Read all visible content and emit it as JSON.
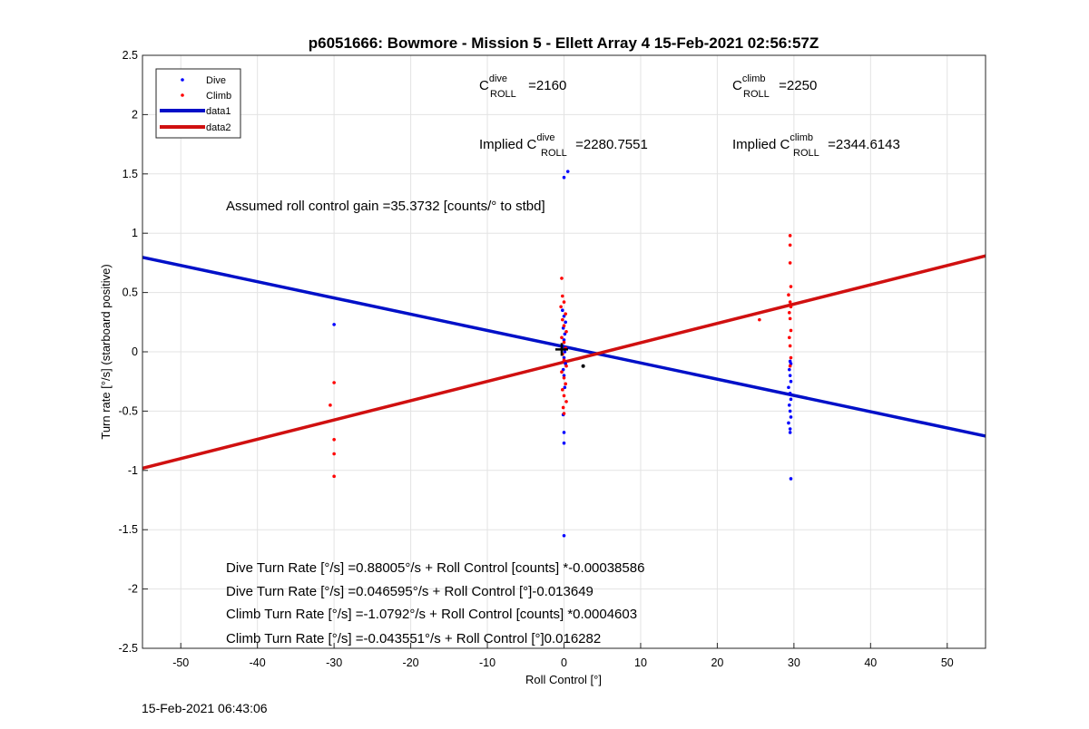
{
  "chart_data": {
    "type": "scatter",
    "title": "p6051666: Bowmore - Mission 5 - Ellett Array 4 15-Feb-2021 02:56:57Z",
    "xlabel": "Roll Control [°]",
    "ylabel": "Turn rate [°/s] (starboard positive)",
    "xlim": [
      -55,
      55
    ],
    "ylim": [
      -2.5,
      2.5
    ],
    "xticks": [
      -50,
      -40,
      -30,
      -20,
      -10,
      0,
      10,
      20,
      30,
      40,
      50
    ],
    "yticks": [
      -2.5,
      -2,
      -1.5,
      -1,
      -0.5,
      0,
      0.5,
      1,
      1.5,
      2,
      2.5
    ],
    "grid": true,
    "legend_placement": "top-left",
    "colors": {
      "dive": "#0000ff",
      "climb": "#ff0000",
      "data1": "#0010c8",
      "data2": "#d01010"
    },
    "series": [
      {
        "name": "Dive",
        "marker": "dot",
        "points": [
          [
            -30,
            0.23
          ],
          [
            0,
            1.47
          ],
          [
            0.5,
            1.52
          ],
          [
            -0.2,
            0.35
          ],
          [
            0,
            0.3
          ],
          [
            0.2,
            0.25
          ],
          [
            -0.1,
            0.2
          ],
          [
            0.1,
            0.15
          ],
          [
            0,
            0.1
          ],
          [
            -0.2,
            0.05
          ],
          [
            0.1,
            0.0
          ],
          [
            0,
            -0.05
          ],
          [
            0.2,
            -0.1
          ],
          [
            -0.1,
            -0.15
          ],
          [
            0,
            -0.2
          ],
          [
            0.1,
            -0.3
          ],
          [
            -0.1,
            -0.53
          ],
          [
            0,
            -0.68
          ],
          [
            0,
            -0.77
          ],
          [
            0,
            -1.55
          ],
          [
            2.5,
            -0.12
          ],
          [
            29.5,
            -0.08
          ],
          [
            29.6,
            -0.1
          ],
          [
            29.4,
            -0.15
          ],
          [
            29.5,
            -0.2
          ],
          [
            29.6,
            -0.25
          ],
          [
            29.3,
            -0.3
          ],
          [
            29.5,
            -0.35
          ],
          [
            29.6,
            -0.4
          ],
          [
            29.4,
            -0.45
          ],
          [
            29.5,
            -0.5
          ],
          [
            29.6,
            -0.55
          ],
          [
            29.3,
            -0.6
          ],
          [
            29.5,
            -0.65
          ],
          [
            29.5,
            -0.68
          ],
          [
            29.6,
            -1.07
          ]
        ]
      },
      {
        "name": "Climb",
        "marker": "dot",
        "points": [
          [
            -30,
            -0.26
          ],
          [
            -30.5,
            -0.45
          ],
          [
            -30,
            -0.74
          ],
          [
            -30,
            -0.86
          ],
          [
            -30,
            -1.05
          ],
          [
            -0.3,
            0.62
          ],
          [
            -0.2,
            0.47
          ],
          [
            0,
            0.42
          ],
          [
            -0.4,
            0.38
          ],
          [
            0.2,
            0.32
          ],
          [
            -0.2,
            0.27
          ],
          [
            0,
            0.22
          ],
          [
            0.3,
            0.17
          ],
          [
            -0.3,
            0.12
          ],
          [
            0,
            0.08
          ],
          [
            0.2,
            0.03
          ],
          [
            -0.2,
            -0.02
          ],
          [
            0,
            -0.07
          ],
          [
            0.3,
            -0.12
          ],
          [
            -0.3,
            -0.17
          ],
          [
            0,
            -0.22
          ],
          [
            0.2,
            -0.27
          ],
          [
            -0.2,
            -0.32
          ],
          [
            0,
            -0.37
          ],
          [
            0.3,
            -0.42
          ],
          [
            -0.1,
            -0.47
          ],
          [
            0,
            -0.52
          ],
          [
            25.5,
            0.27
          ],
          [
            29.5,
            0.98
          ],
          [
            29.5,
            0.9
          ],
          [
            29.5,
            0.75
          ],
          [
            29.6,
            0.55
          ],
          [
            29.3,
            0.48
          ],
          [
            29.5,
            0.42
          ],
          [
            29.6,
            0.38
          ],
          [
            29.4,
            0.33
          ],
          [
            29.5,
            0.28
          ],
          [
            29.6,
            0.18
          ],
          [
            29.4,
            0.12
          ],
          [
            29.5,
            0.05
          ],
          [
            29.6,
            -0.05
          ],
          [
            29.5,
            -0.12
          ]
        ]
      },
      {
        "name": "data1",
        "type": "line",
        "x": [
          -55,
          55
        ],
        "y": [
          0.7966,
          -0.7104
        ]
      },
      {
        "name": "data2",
        "type": "line",
        "x": [
          -55,
          55
        ],
        "y": [
          -0.9818,
          0.8092
        ]
      }
    ],
    "mean_marker": [
      {
        "x": -0.3,
        "y": 0.02,
        "color": "#000000"
      },
      {
        "x": 2.5,
        "y": -0.12,
        "color": "#000000"
      }
    ],
    "annotations": {
      "c_dive_pre": "C",
      "c_dive_sup": "dive",
      "c_dive_sub": "ROLL",
      "c_dive_val": " =2160",
      "c_climb_pre": "C",
      "c_climb_sup": "climb",
      "c_climb_sub": "ROLL",
      "c_climb_val": " =2250",
      "imp_dive_pre": "Implied C",
      "imp_dive_sup": "dive",
      "imp_dive_sub": "ROLL",
      "imp_dive_val": " =2280.7551",
      "imp_climb_pre": "Implied C",
      "imp_climb_sup": "climb",
      "imp_climb_sub": "ROLL",
      "imp_climb_val": " =2344.6143",
      "gain": "Assumed roll control gain =35.3732 [counts/° to stbd]",
      "eq1": "Dive Turn Rate [°/s] =0.88005°/s + Roll Control [counts] *-0.00038586",
      "eq2": "Dive Turn Rate [°/s] =0.046595°/s + Roll Control [°]-0.013649",
      "eq3": "Climb Turn Rate [°/s] =-1.0792°/s + Roll Control [counts] *0.0004603",
      "eq4": "Climb Turn Rate [°/s] =-0.043551°/s + Roll Control [°]0.016282"
    }
  },
  "footer": "15-Feb-2021 06:43:06"
}
